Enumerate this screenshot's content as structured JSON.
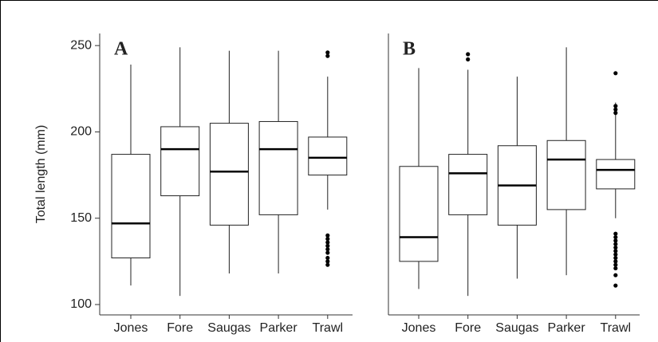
{
  "chart_data": [
    {
      "type": "boxplot",
      "panel_label": "A",
      "y_label": "Total length (mm)",
      "categories": [
        "Jones",
        "Fore",
        "Saugas",
        "Parker",
        "Trawl"
      ],
      "boxes": [
        {
          "min": 111,
          "q1": 127,
          "median": 147,
          "q3": 187,
          "max": 239,
          "outliers": []
        },
        {
          "min": 105,
          "q1": 163,
          "median": 190,
          "q3": 203,
          "max": 249,
          "outliers": []
        },
        {
          "min": 118,
          "q1": 146,
          "median": 177,
          "q3": 205,
          "max": 247,
          "outliers": []
        },
        {
          "min": 118,
          "q1": 152,
          "median": 190,
          "q3": 206,
          "max": 247,
          "outliers": []
        },
        {
          "min": 155,
          "q1": 175,
          "median": 185,
          "q3": 197,
          "max": 232,
          "outliers": [
            244,
            246,
            140,
            138,
            136,
            134,
            132,
            130,
            127,
            125,
            123
          ]
        }
      ],
      "ylim": [
        94,
        257
      ],
      "yticks": [
        100,
        150,
        200,
        250
      ]
    },
    {
      "type": "boxplot",
      "panel_label": "B",
      "categories": [
        "Jones",
        "Fore",
        "Saugas",
        "Parker",
        "Trawl"
      ],
      "boxes": [
        {
          "min": 109,
          "q1": 125,
          "median": 139,
          "q3": 180,
          "max": 237,
          "outliers": []
        },
        {
          "min": 105,
          "q1": 152,
          "median": 176,
          "q3": 187,
          "max": 236,
          "outliers": [
            242,
            245
          ]
        },
        {
          "min": 115,
          "q1": 146,
          "median": 169,
          "q3": 192,
          "max": 232,
          "outliers": []
        },
        {
          "min": 117,
          "q1": 155,
          "median": 184,
          "q3": 195,
          "max": 249,
          "outliers": []
        },
        {
          "min": 150,
          "q1": 167,
          "median": 178,
          "q3": 184,
          "max": 217,
          "outliers": [
            234,
            215,
            213,
            211,
            141,
            139,
            137,
            135,
            133,
            131,
            129,
            127,
            125,
            123,
            121,
            117,
            111
          ]
        }
      ],
      "ylim": [
        94,
        257
      ]
    }
  ]
}
